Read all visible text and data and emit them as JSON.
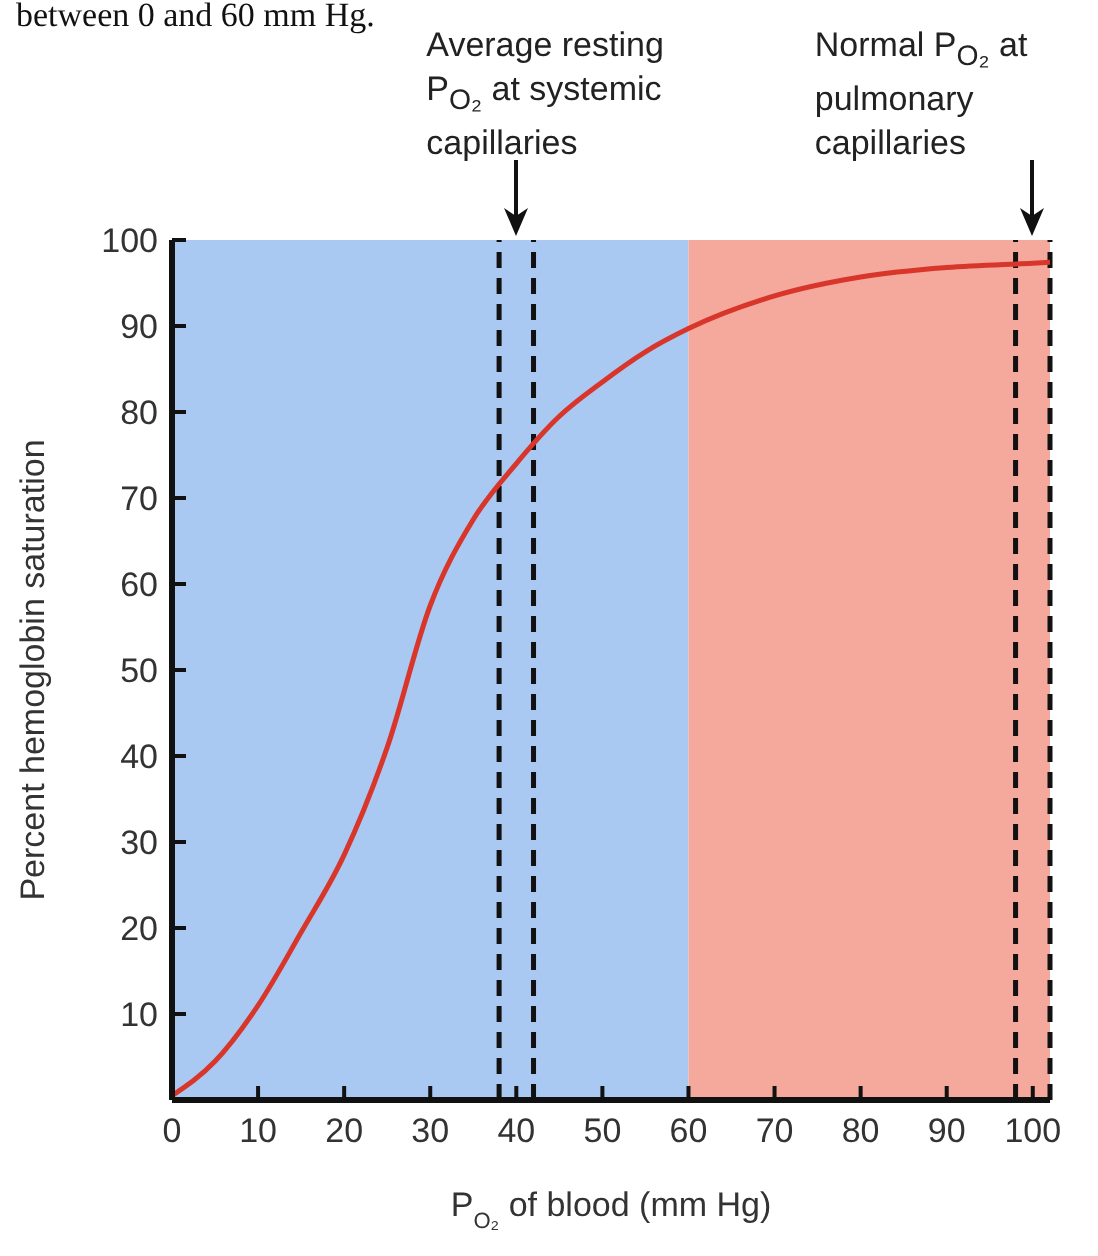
{
  "chart_data": {
    "type": "line",
    "xlabel": "P$_{O₂}$ of blood (mm Hg)",
    "ylabel": "Percent hemoglobin saturation",
    "annotations": [
      "between 0 and 60 mm Hg.",
      {
        "text": "Average resting P$_{O₂}$ at systemic capillaries",
        "x": 40,
        "y": 100
      },
      {
        "text": "Normal P$_{O₂}$ at pulmonary capillaries",
        "x": 100,
        "y": 100
      }
    ],
    "x": [
      0,
      5,
      10,
      15,
      20,
      25,
      30,
      35,
      40,
      45,
      50,
      55,
      60,
      70,
      80,
      90,
      100,
      102
    ],
    "series": [
      {
        "color": "#d9362b",
        "values": [
          0.5,
          4.5,
          11,
          19.5,
          28.5,
          41,
          57.5,
          67.5,
          74,
          79.5,
          83.5,
          87,
          89.7,
          93.5,
          95.7,
          96.8,
          97.3,
          97.4
        ]
      }
    ],
    "xlim": [
      0,
      102
    ],
    "ylim": [
      0,
      100
    ],
    "xticks": [
      0,
      10,
      20,
      30,
      40,
      50,
      60,
      70,
      80,
      90,
      100
    ],
    "yticks": [
      10,
      20,
      30,
      40,
      50,
      60,
      70,
      80,
      90,
      100
    ],
    "bands": [
      {
        "axis": "x",
        "from": 0,
        "to": 60,
        "color": "#a9c8f2"
      },
      {
        "axis": "x",
        "from": 60,
        "to": 102,
        "color": "#f5a89c"
      }
    ],
    "ref_lines": [
      {
        "axis": "x",
        "value": 38,
        "color": "#111111",
        "line_style": "dashed"
      },
      {
        "axis": "x",
        "value": 42,
        "color": "#111111",
        "line_style": "dashed"
      },
      {
        "axis": "x",
        "value": 98,
        "color": "#111111",
        "line_style": "dashed"
      },
      {
        "axis": "x",
        "value": 102,
        "color": "#111111",
        "line_style": "dashed"
      }
    ],
    "grid": false,
    "legend": false,
    "marker": "none",
    "line_style": "solid"
  }
}
